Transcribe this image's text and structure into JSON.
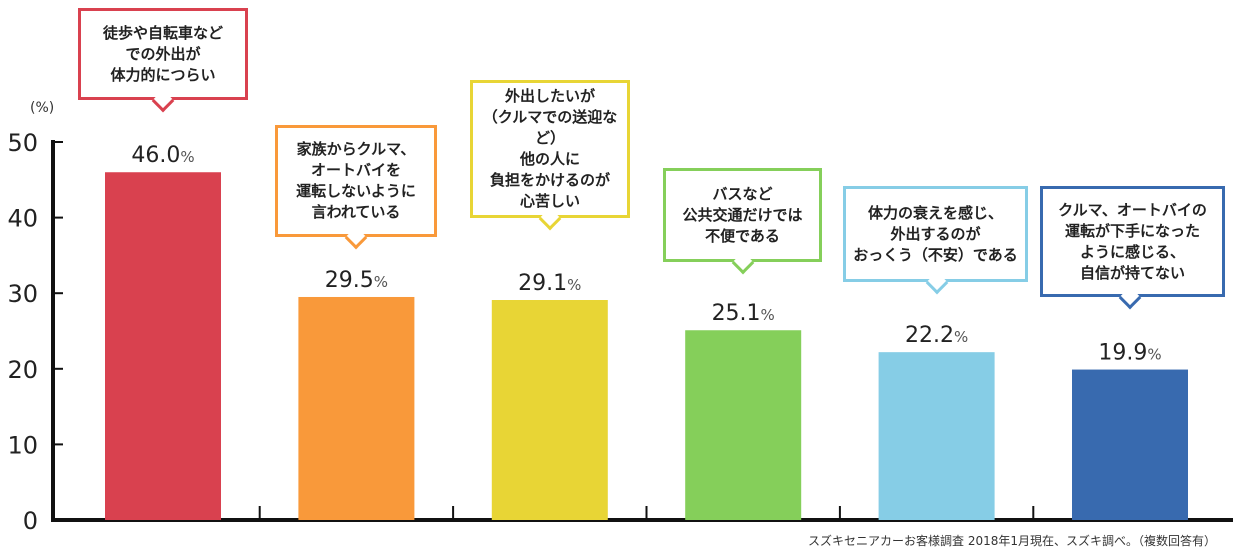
{
  "chart_data": {
    "type": "bar",
    "ylabel": "(%)",
    "ylim": [
      0,
      50
    ],
    "yticks": [
      "0",
      "10",
      "20",
      "30",
      "40",
      "50"
    ],
    "grid": false,
    "categories": [
      "徒歩や自転車など\nでの外出が\n体力的につらい",
      "家族からクルマ、\nオートバイを\n運転しないように\n言われている",
      "外出したいが\n（クルマでの送迎など）\n他の人に\n負担をかけるのが\n心苦しい",
      "バスなど\n公共交通だけでは\n不便である",
      "体力の衰えを感じ、\n外出するのが\nおっくう（不安）である",
      "クルマ、オートバイの\n運転が下手になった\nように感じる、\n自信が持てない"
    ],
    "values": [
      46.0,
      29.5,
      29.1,
      25.1,
      22.2,
      19.9
    ],
    "value_labels": [
      "46.0",
      "29.5",
      "29.1",
      "25.1",
      "22.2",
      "19.9"
    ],
    "value_unit": "%",
    "colors": [
      "#d9414f",
      "#f9993a",
      "#e8d535",
      "#85cf5a",
      "#86cde6",
      "#386aaf"
    ]
  },
  "source_note": "スズキセニアカーお客様調査 2018年1月現在、スズキ調べ。（複数回答有）"
}
